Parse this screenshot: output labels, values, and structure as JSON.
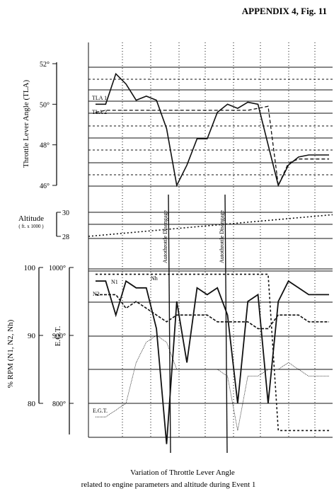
{
  "appendix_label": "APPENDIX 4, Fig. 11",
  "caption_line1": "Variation of Throttle Lever Angle",
  "caption_line2": "related to engine parameters and altitude during Event 1",
  "tla_panel": {
    "ylabel": "Throttle Lever Angle (TLA)",
    "ylim": [
      46,
      52
    ],
    "ticks": [
      "46°",
      "48°",
      "50°",
      "52°"
    ],
    "series": [
      {
        "name": "TLA 1",
        "values": [
          50.0,
          50.0,
          51.5,
          51.0,
          50.2,
          50.4,
          50.2,
          48.8,
          46.0,
          47.0,
          48.3,
          48.3,
          49.6,
          50.0,
          49.8,
          50.1,
          50.0,
          48.0,
          46.0,
          47.0,
          47.4,
          47.5,
          47.5,
          47.5
        ]
      },
      {
        "name": "TLA 2",
        "values": [
          49.6,
          49.7,
          49.7,
          49.7,
          49.7,
          49.7,
          49.7,
          49.7,
          49.7,
          49.7,
          49.7,
          49.7,
          49.7,
          49.7,
          49.7,
          49.7,
          49.8,
          49.9,
          46.0,
          47.1,
          47.3,
          47.3,
          47.3,
          47.3
        ]
      }
    ]
  },
  "alt_panel": {
    "ylabel": "Altitude",
    "yunit": "( ft. x 1000 )",
    "ylim": [
      28,
      30
    ],
    "ticks": [
      "28",
      "30"
    ],
    "series": [
      {
        "name": "Altitude",
        "x": [
          0,
          1
        ],
        "values": [
          28.0,
          29.8
        ]
      }
    ]
  },
  "eng_panel": {
    "ylabel_rpm": "% RPM   (N1, N2, Nh)",
    "ylabel_egt": "E.G.T.",
    "ylim": [
      75,
      100
    ],
    "rpm_ticks": [
      "80",
      "90",
      "100"
    ],
    "egt_ticks": [
      "800°",
      "900°",
      "1000°"
    ],
    "series": [
      {
        "name": "N1",
        "values": [
          98,
          98,
          93,
          98,
          97,
          97,
          91,
          74,
          95,
          86,
          97,
          96,
          97,
          93,
          80,
          95,
          96,
          80,
          95,
          98,
          97,
          96,
          96,
          96
        ]
      },
      {
        "name": "N2",
        "values": [
          96,
          96,
          96,
          94,
          95,
          94,
          93,
          92,
          93,
          93,
          93,
          93,
          92,
          92,
          92,
          92,
          91,
          91,
          93,
          93,
          93,
          92,
          92,
          92
        ]
      },
      {
        "name": "Nh",
        "values": [
          99,
          99,
          99,
          99,
          99,
          99,
          99,
          99,
          99,
          99,
          99,
          99,
          99,
          99,
          99,
          99,
          99,
          99,
          76,
          76,
          76,
          76,
          76,
          76
        ]
      },
      {
        "name": "E.G.T.",
        "values": [
          78,
          78,
          79,
          80,
          86,
          89,
          90,
          89,
          85,
          85,
          85,
          85,
          85,
          84,
          76,
          84,
          84,
          85,
          85,
          86,
          85,
          84,
          84,
          84
        ]
      }
    ]
  },
  "annotations": [
    "Autothrottle Disengage",
    "Autothrottle Disengage"
  ]
}
